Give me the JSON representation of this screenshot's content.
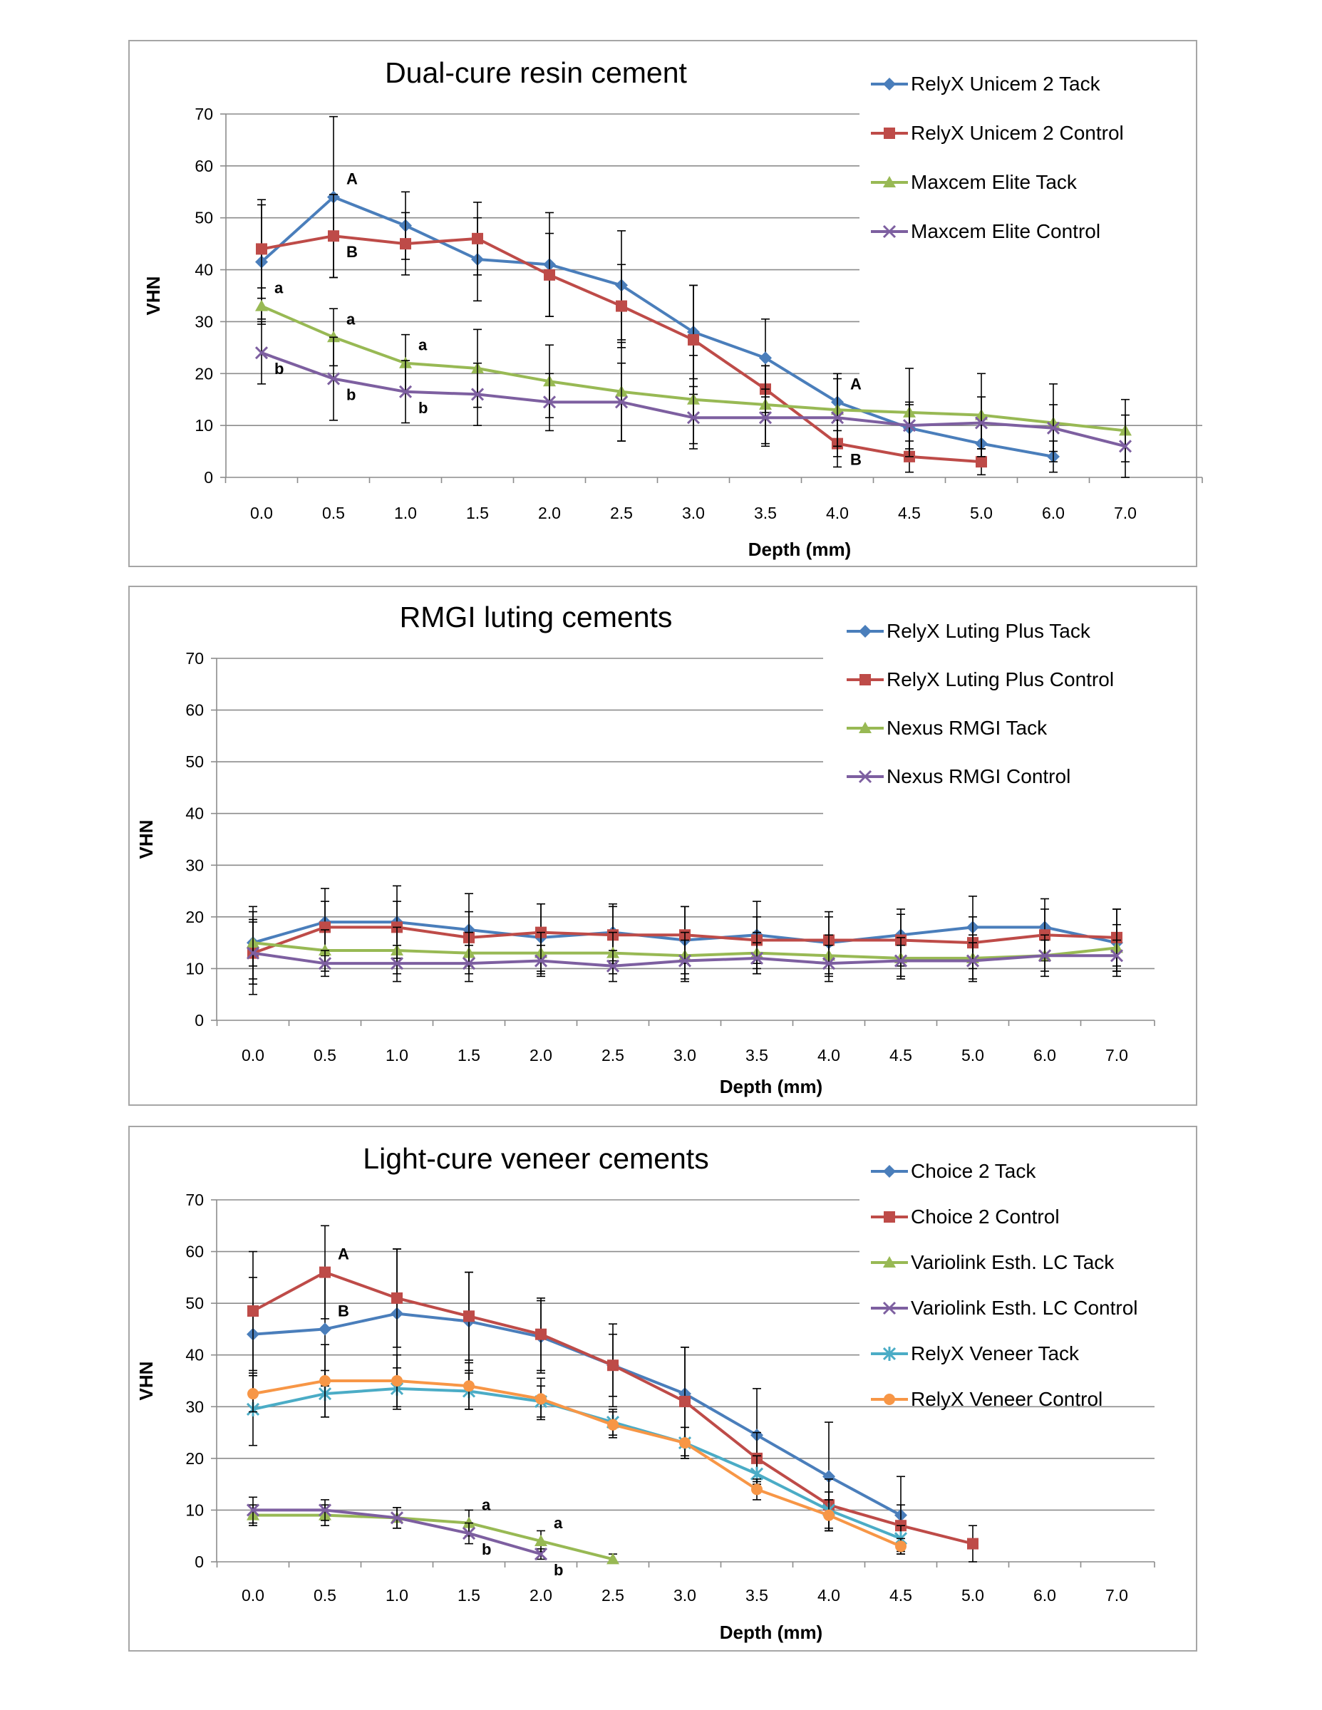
{
  "x_categories": [
    "0.0",
    "0.5",
    "1.0",
    "1.5",
    "2.0",
    "2.5",
    "3.0",
    "3.5",
    "4.0",
    "4.5",
    "5.0",
    "6.0",
    "7.0"
  ],
  "chart_data": [
    {
      "type": "line",
      "title": "Dual-cure resin cement",
      "xlabel": "Depth (mm)",
      "ylabel": "VHN",
      "ylim": [
        0,
        70
      ],
      "yticks": [
        "0",
        "10",
        "20",
        "30",
        "40",
        "50",
        "60",
        "70"
      ],
      "grid": true,
      "legend_position": "top-right",
      "series": [
        {
          "name": "RelyX Unicem 2 Tack",
          "color": "#4a7ebb",
          "marker": "diamond",
          "values": [
            41.5,
            54,
            48.5,
            42,
            41,
            37,
            28,
            23,
            14.5,
            9.5,
            6.5,
            4,
            null
          ],
          "errors": [
            11,
            15.5,
            6.5,
            8,
            10,
            10.5,
            9,
            7.5,
            5.5,
            4.5,
            4,
            3,
            null
          ]
        },
        {
          "name": "RelyX Unicem 2 Control",
          "color": "#be4b48",
          "marker": "square",
          "values": [
            44,
            46.5,
            45,
            46,
            39,
            33,
            26.5,
            17,
            6.5,
            4,
            3,
            null,
            null
          ],
          "errors": [
            9.5,
            8,
            6,
            7,
            8,
            8,
            10.5,
            4.5,
            4.5,
            3,
            2.5,
            null,
            null
          ]
        },
        {
          "name": "Maxcem Elite Tack",
          "color": "#98b954",
          "marker": "triangle",
          "values": [
            33,
            27,
            22,
            21,
            18.5,
            16.5,
            15,
            14,
            13,
            12.5,
            12,
            10.5,
            9
          ],
          "errors": [
            3.5,
            5.5,
            5.5,
            7.5,
            7,
            9.5,
            8.5,
            7.5,
            7,
            8.5,
            8,
            7.5,
            6
          ]
        },
        {
          "name": "Maxcem Elite Control",
          "color": "#7d5fa0",
          "marker": "x",
          "values": [
            24,
            19,
            16.5,
            16,
            14.5,
            14.5,
            11.5,
            11.5,
            11.5,
            10,
            10.5,
            9.5,
            6
          ],
          "errors": [
            6,
            8,
            6,
            6,
            5.5,
            7.5,
            6,
            5.5,
            7.5,
            4.5,
            5,
            4.5,
            6
          ]
        }
      ],
      "annotations": [
        {
          "text": "A",
          "series": 0,
          "x": "0.5",
          "dir": "above"
        },
        {
          "text": "B",
          "series": 1,
          "x": "0.5",
          "dir": "below"
        },
        {
          "text": "a",
          "series": 2,
          "x": "0.0",
          "dir": "above"
        },
        {
          "text": "a",
          "series": 2,
          "x": "0.5",
          "dir": "above"
        },
        {
          "text": "a",
          "series": 2,
          "x": "1.0",
          "dir": "above"
        },
        {
          "text": "b",
          "series": 3,
          "x": "0.0",
          "dir": "below"
        },
        {
          "text": "b",
          "series": 3,
          "x": "0.5",
          "dir": "below"
        },
        {
          "text": "b",
          "series": 3,
          "x": "1.0",
          "dir": "below"
        },
        {
          "text": "A",
          "series": 0,
          "x": "4.0",
          "dir": "above"
        },
        {
          "text": "B",
          "series": 1,
          "x": "4.0",
          "dir": "below"
        }
      ]
    },
    {
      "type": "line",
      "title": "RMGI luting cements",
      "xlabel": "Depth (mm)",
      "ylabel": "VHN",
      "ylim": [
        0,
        70
      ],
      "yticks": [
        "0",
        "10",
        "20",
        "30",
        "40",
        "50",
        "60",
        "70"
      ],
      "grid": true,
      "legend_position": "top-right",
      "series": [
        {
          "name": "RelyX Luting Plus Tack",
          "color": "#4a7ebb",
          "marker": "diamond",
          "values": [
            15,
            19,
            19,
            17.5,
            16,
            17,
            15.5,
            16.5,
            15,
            16.5,
            18,
            18,
            15
          ],
          "errors": [
            7,
            6.5,
            7,
            7,
            6.5,
            5.5,
            6.5,
            6.5,
            6,
            5,
            6,
            5.5,
            6.5
          ]
        },
        {
          "name": "RelyX Luting Plus Control",
          "color": "#be4b48",
          "marker": "square",
          "values": [
            13,
            18,
            18,
            16,
            17,
            16.5,
            16.5,
            15.5,
            15.5,
            15.5,
            15,
            16.5,
            16
          ],
          "errors": [
            8,
            5,
            5,
            5,
            5.5,
            5.5,
            5.5,
            4.5,
            4.5,
            5,
            5,
            5,
            5.5
          ]
        },
        {
          "name": "Nexus RMGI Tack",
          "color": "#98b954",
          "marker": "triangle",
          "values": [
            15,
            13.5,
            13.5,
            13,
            13,
            13,
            12.5,
            13,
            12.5,
            12,
            12,
            12.5,
            14
          ],
          "errors": [
            4.5,
            4,
            4.5,
            4,
            4,
            4,
            4.5,
            4,
            4,
            4,
            4.5,
            4,
            4.5
          ]
        },
        {
          "name": "Nexus RMGI Control",
          "color": "#7d5fa0",
          "marker": "x",
          "values": [
            13,
            11,
            11,
            11,
            11.5,
            10.5,
            11.5,
            12,
            11,
            11.5,
            11.5,
            12.5,
            12.5
          ],
          "errors": [
            6,
            2.5,
            3.5,
            3.5,
            3,
            3,
            4,
            3,
            3.5,
            3,
            3.5,
            3,
            3
          ]
        }
      ],
      "annotations": []
    },
    {
      "type": "line",
      "title": "Light-cure veneer cements",
      "xlabel": "Depth (mm)",
      "ylabel": "VHN",
      "ylim": [
        0,
        70
      ],
      "yticks": [
        "0",
        "10",
        "20",
        "30",
        "40",
        "50",
        "60",
        "70"
      ],
      "grid": true,
      "legend_position": "top-right",
      "series": [
        {
          "name": "Choice 2 Tack",
          "color": "#4a7ebb",
          "marker": "diamond",
          "values": [
            44,
            45,
            48,
            46.5,
            43.5,
            38,
            32.5,
            24.5,
            16.5,
            9,
            null,
            null,
            null
          ],
          "errors": [
            11,
            11,
            12.5,
            9.5,
            7,
            6,
            9,
            9,
            10.5,
            7.5,
            null,
            null,
            null
          ]
        },
        {
          "name": "Choice 2 Control",
          "color": "#be4b48",
          "marker": "square",
          "values": [
            48.5,
            56,
            51,
            47.5,
            44,
            38,
            31,
            20,
            11,
            7,
            3.5,
            null,
            null
          ],
          "errors": [
            11.5,
            9,
            9.5,
            8.5,
            7,
            8,
            10.5,
            5,
            5,
            4,
            3.5,
            null,
            null
          ]
        },
        {
          "name": "Variolink Esth. LC Tack",
          "color": "#98b954",
          "marker": "triangle",
          "values": [
            9,
            9,
            8.5,
            7.5,
            4,
            0.5,
            null,
            null,
            null,
            null,
            null,
            null,
            null
          ],
          "errors": [
            2,
            2,
            2,
            2.5,
            2,
            1,
            null,
            null,
            null,
            null,
            null,
            null,
            null
          ]
        },
        {
          "name": "Variolink Esth. LC Control",
          "color": "#7d5fa0",
          "marker": "x",
          "values": [
            10,
            10,
            8.5,
            5.5,
            1.5,
            null,
            null,
            null,
            null,
            null,
            null,
            null,
            null
          ],
          "errors": [
            2.5,
            2,
            2,
            2,
            1,
            null,
            null,
            null,
            null,
            null,
            null,
            null,
            null
          ]
        },
        {
          "name": "RelyX Veneer Tack",
          "color": "#4bacc6",
          "marker": "star",
          "values": [
            29.5,
            32.5,
            33.5,
            33,
            31,
            27,
            23,
            17,
            10,
            4.5,
            null,
            null,
            null
          ],
          "errors": [
            7,
            4.5,
            4,
            3.5,
            3,
            2.5,
            3,
            3.5,
            3.5,
            2.5,
            null,
            null,
            null
          ]
        },
        {
          "name": "RelyX Veneer Control",
          "color": "#f79646",
          "marker": "circle",
          "values": [
            32.5,
            35,
            35,
            34,
            31.5,
            26.5,
            23,
            14,
            9,
            3,
            null,
            null,
            null
          ],
          "errors": [
            3.5,
            7,
            5,
            4.5,
            4,
            2.5,
            3,
            2,
            3,
            1.5,
            null,
            null,
            null
          ]
        }
      ],
      "annotations": [
        {
          "text": "A",
          "series": 1,
          "x": "0.5",
          "dir": "above"
        },
        {
          "text": "B",
          "series": 0,
          "x": "0.5",
          "dir": "above"
        },
        {
          "text": "a",
          "series": 2,
          "x": "1.5",
          "dir": "above"
        },
        {
          "text": "a",
          "series": 2,
          "x": "2.0",
          "dir": "above"
        },
        {
          "text": "b",
          "series": 3,
          "x": "1.5",
          "dir": "below"
        },
        {
          "text": "b",
          "series": 3,
          "x": "2.0",
          "dir": "below"
        }
      ]
    }
  ]
}
